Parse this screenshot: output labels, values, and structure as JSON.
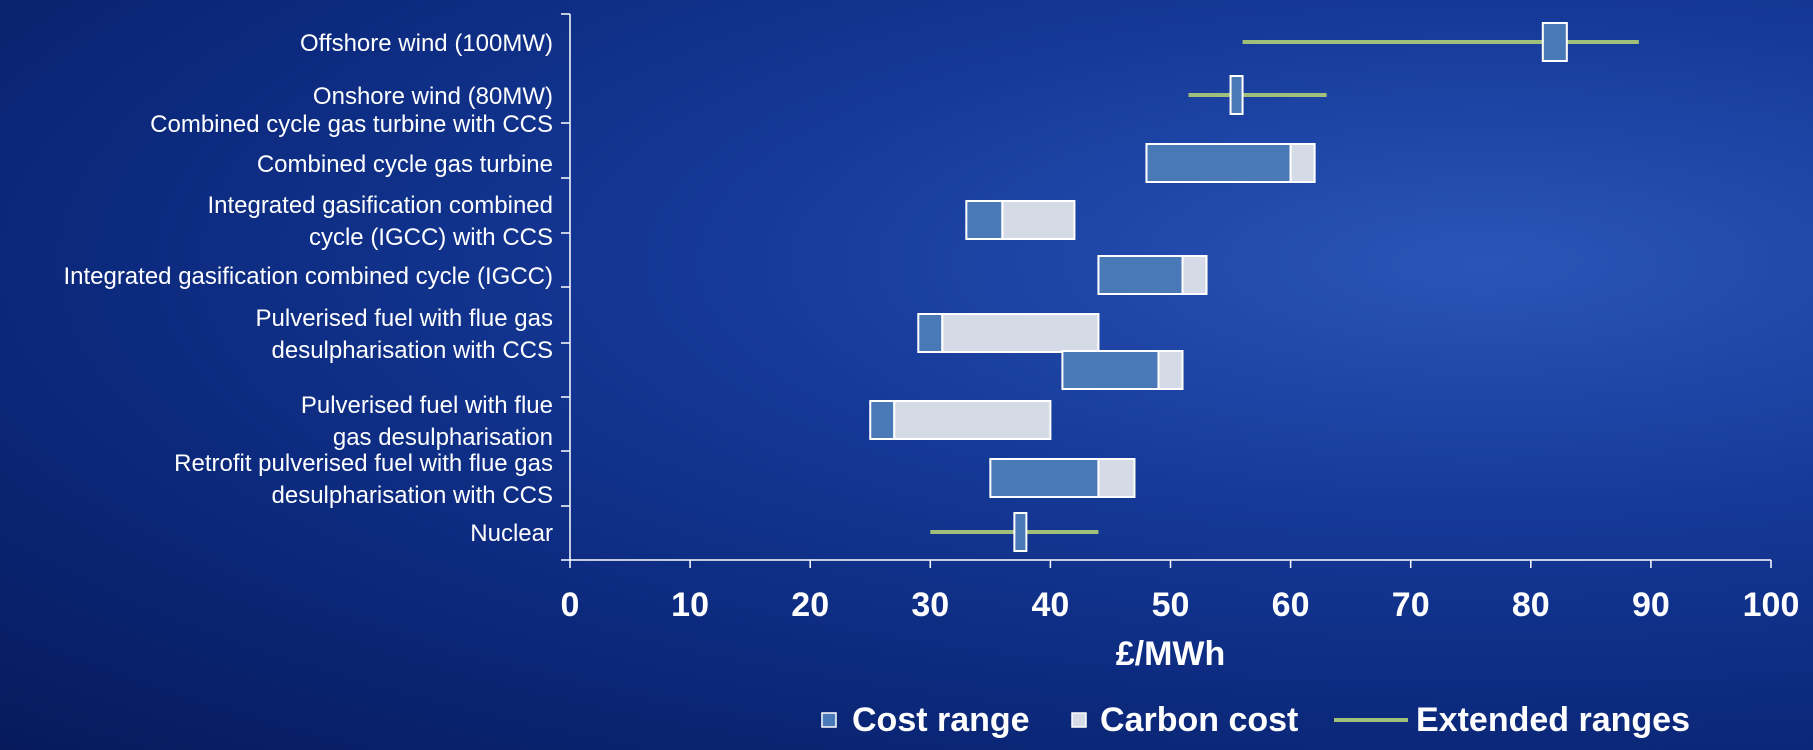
{
  "chart_data": {
    "type": "range-bar",
    "xlabel": "£/MWh",
    "xlim": [
      0,
      100
    ],
    "xticks": [
      0,
      10,
      20,
      30,
      40,
      50,
      60,
      70,
      80,
      90,
      100
    ],
    "categories": [
      {
        "lines": [
          "Offshore wind  (100MW)"
        ],
        "cost_range": [
          81,
          83
        ],
        "carbon_cost": null,
        "extended": [
          56,
          89
        ]
      },
      {
        "lines": [
          "Onshore wind  (80MW)"
        ],
        "cost_range": [
          55,
          56
        ],
        "carbon_cost": null,
        "extended": [
          51.5,
          63
        ]
      },
      {
        "lines": [
          "Combined cycle gas turbine with CCS"
        ],
        "cost_range": null,
        "carbon_cost": null,
        "extended": null
      },
      {
        "lines": [
          "Combined cycle gas turbine"
        ],
        "cost_range": [
          48,
          60
        ],
        "carbon_cost": [
          60,
          62
        ],
        "extended": null
      },
      {
        "lines": [
          "Integrated gasification combined ",
          "cycle (IGCC) with CCS"
        ],
        "cost_range": [
          33,
          36
        ],
        "carbon_cost": [
          36,
          42
        ],
        "extended": null
      },
      {
        "lines": [
          "Integrated gasification combined cycle (IGCC)"
        ],
        "cost_range": [
          44,
          51
        ],
        "carbon_cost": [
          51,
          53
        ],
        "extended": null
      },
      {
        "lines": [
          "Pulverised fuel with flue gas ",
          "desulpharisation with CCS"
        ],
        "cost_range": [
          29,
          31
        ],
        "carbon_cost": [
          31,
          44
        ],
        "extended": null
      },
      {
        "lines": [
          ""
        ],
        "cost_range": [
          41,
          49
        ],
        "carbon_cost": [
          49,
          51
        ],
        "extended": null
      },
      {
        "lines": [
          "Pulverised fuel with flue ",
          "gas desulpharisation"
        ],
        "cost_range": [
          25,
          27
        ],
        "carbon_cost": [
          27,
          40
        ],
        "extended": null
      },
      {
        "lines": [
          "Retrofit pulverised fuel with flue gas ",
          "desulpharisation with CCS"
        ],
        "cost_range": [
          35,
          44
        ],
        "carbon_cost": [
          44,
          47
        ],
        "extended": null
      },
      {
        "lines": [
          "Nuclear"
        ],
        "cost_range": [
          37,
          38
        ],
        "carbon_cost": null,
        "extended": [
          30,
          44
        ]
      }
    ],
    "legend": [
      {
        "label": "Cost range",
        "kind": "box",
        "color": "#4a79b8"
      },
      {
        "label": "Carbon cost",
        "kind": "box",
        "color": "#d4dbe6"
      },
      {
        "label": "Extended ranges",
        "kind": "line",
        "color": "#9fbf7a"
      }
    ],
    "legend_position": "bottom",
    "grid": false,
    "colors": {
      "cost": "#4a79b8",
      "carbon": "#d4dbe6",
      "extended": "#9fbf7a",
      "outline": "#ffffff",
      "axis": "#ffffff"
    }
  }
}
